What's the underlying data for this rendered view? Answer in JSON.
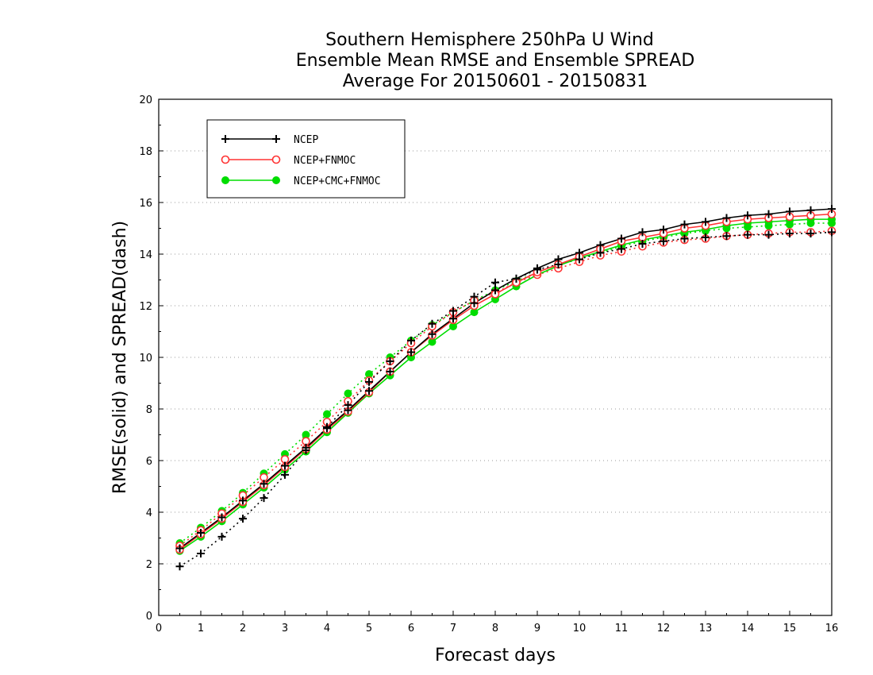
{
  "chart_data": {
    "type": "line",
    "title_lines": [
      "Southern Hemisphere 250hPa U Wind",
      "Ensemble Mean RMSE and Ensemble SPREAD",
      "Average For 20150601 - 20150831"
    ],
    "xlabel": "Forecast days",
    "ylabel": "RMSE(solid) and SPREAD(dash)",
    "xlim": [
      0,
      16
    ],
    "ylim": [
      0,
      20
    ],
    "x_ticks": [
      "0",
      "1",
      "2",
      "3",
      "4",
      "5",
      "6",
      "7",
      "8",
      "9",
      "10",
      "11",
      "12",
      "13",
      "14",
      "15",
      "16"
    ],
    "y_ticks": [
      "0",
      "2",
      "4",
      "6",
      "8",
      "10",
      "12",
      "14",
      "16",
      "18",
      "20"
    ],
    "grid": "horizontal-dotted",
    "legend_position": "top-left",
    "x": [
      0.5,
      1,
      1.5,
      2,
      2.5,
      3,
      3.5,
      4,
      4.5,
      5,
      5.5,
      6,
      6.5,
      7,
      7.5,
      8,
      8.5,
      9,
      9.5,
      10,
      10.5,
      11,
      11.5,
      12,
      12.5,
      13,
      13.5,
      14,
      14.5,
      15,
      15.5,
      16
    ],
    "series": [
      {
        "name": "NCEP",
        "color": "#000000",
        "marker": "plus",
        "rmse": [
          2.6,
          3.2,
          3.8,
          4.45,
          5.1,
          5.8,
          6.5,
          7.25,
          7.95,
          8.7,
          9.45,
          10.2,
          10.9,
          11.5,
          12.1,
          12.6,
          13.05,
          13.45,
          13.8,
          14.05,
          14.35,
          14.6,
          14.85,
          14.95,
          15.15,
          15.25,
          15.4,
          15.5,
          15.55,
          15.65,
          15.7,
          15.75
        ],
        "spread": [
          1.9,
          2.4,
          3.05,
          3.75,
          4.55,
          5.45,
          6.4,
          7.3,
          8.15,
          9.05,
          9.85,
          10.65,
          11.3,
          11.8,
          12.35,
          12.9,
          13.05,
          13.4,
          13.6,
          13.8,
          14.05,
          14.2,
          14.4,
          14.5,
          14.6,
          14.65,
          14.7,
          14.75,
          14.75,
          14.8,
          14.8,
          14.85
        ]
      },
      {
        "name": "NCEP+FNMOC",
        "color": "#ff3333",
        "marker": "open-circle",
        "rmse": [
          2.55,
          3.15,
          3.75,
          4.4,
          5.05,
          5.75,
          6.45,
          7.2,
          7.9,
          8.65,
          9.45,
          10.2,
          10.85,
          11.45,
          12.0,
          12.45,
          12.9,
          13.3,
          13.6,
          13.9,
          14.2,
          14.5,
          14.65,
          14.8,
          15.0,
          15.1,
          15.25,
          15.35,
          15.4,
          15.45,
          15.5,
          15.55
        ],
        "spread": [
          2.7,
          3.3,
          3.95,
          4.65,
          5.35,
          6.05,
          6.75,
          7.5,
          8.3,
          9.1,
          9.85,
          10.55,
          11.2,
          11.75,
          12.2,
          12.5,
          12.9,
          13.2,
          13.45,
          13.7,
          13.95,
          14.1,
          14.3,
          14.45,
          14.55,
          14.6,
          14.7,
          14.75,
          14.8,
          14.85,
          14.85,
          14.9
        ]
      },
      {
        "name": "NCEP+CMC+FNMOC",
        "color": "#00dd00",
        "marker": "filled-circle",
        "rmse": [
          2.5,
          3.05,
          3.65,
          4.3,
          4.95,
          5.65,
          6.35,
          7.1,
          7.85,
          8.6,
          9.3,
          10.0,
          10.6,
          11.2,
          11.75,
          12.25,
          12.75,
          13.2,
          13.55,
          13.85,
          14.1,
          14.35,
          14.55,
          14.7,
          14.85,
          14.95,
          15.1,
          15.2,
          15.25,
          15.3,
          15.35,
          15.35
        ],
        "spread": [
          2.8,
          3.4,
          4.05,
          4.75,
          5.5,
          6.25,
          7.0,
          7.8,
          8.6,
          9.35,
          10.0,
          10.65,
          11.25,
          11.75,
          12.2,
          12.6,
          12.95,
          13.3,
          13.6,
          13.85,
          14.05,
          14.3,
          14.5,
          14.65,
          14.8,
          14.9,
          15.0,
          15.05,
          15.1,
          15.15,
          15.2,
          15.2
        ]
      }
    ]
  }
}
